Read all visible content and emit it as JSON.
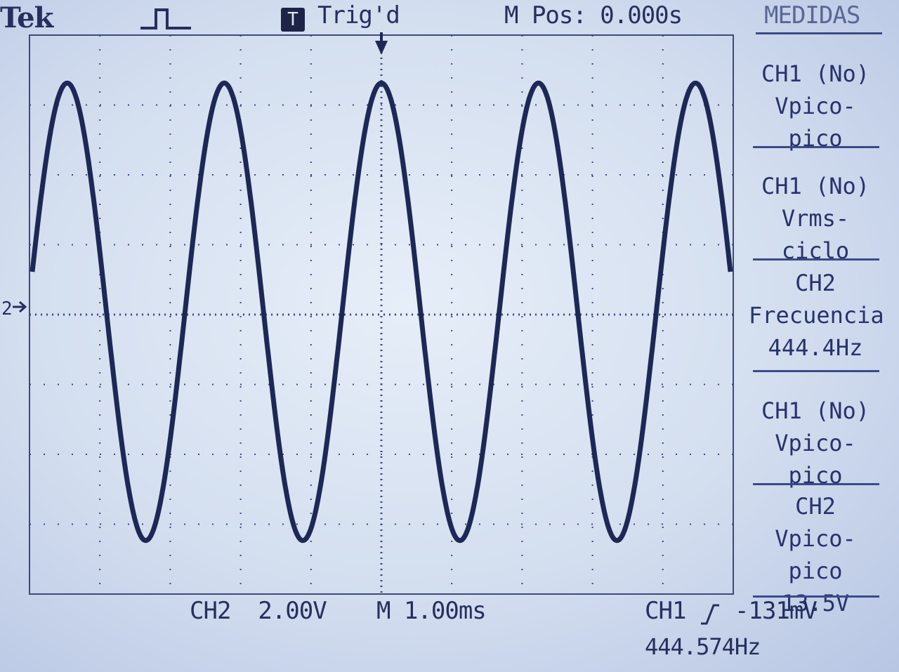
{
  "header": {
    "brand": "Tek",
    "trigger_status": "Trig'd",
    "trigger_icon_letter": "T",
    "position": "M Pos: 0.000s",
    "menu_title": "MEDIDAS"
  },
  "side_panel": {
    "items": [
      {
        "lines": [
          "CH1 (No)",
          "Vpico-pico"
        ]
      },
      {
        "lines": [
          "CH1 (No)",
          "Vrms-ciclo"
        ]
      },
      {
        "lines": [
          "CH2",
          "Frecuencia",
          "444.4Hz"
        ]
      },
      {
        "lines": [
          "CH1 (No)",
          "Vpico-pico"
        ]
      },
      {
        "lines": [
          "CH2",
          "Vpico-pico",
          "13.5V"
        ]
      }
    ]
  },
  "footer": {
    "ch2_scale": "CH2  2.00V",
    "time_scale": "M 1.00ms",
    "trigger_label": "CH1",
    "trigger_level": "-131mV",
    "trigger_frequency": "444.574Hz"
  },
  "markers": {
    "channel_marker": "2"
  },
  "chart_data": {
    "type": "line",
    "title": "",
    "xlabel": "",
    "ylabel": "",
    "series": [
      {
        "channel": "CH2",
        "waveform": "sine",
        "frequency_hz": 444.4,
        "peak_to_peak_v": 13.5
      }
    ],
    "time_per_division_ms": 1.0,
    "volts_per_division": 2.0,
    "horizontal_divisions": 10,
    "vertical_divisions": 8,
    "grid": true,
    "colors": {
      "trace": "#1e2856",
      "grid": "#3d4a7c",
      "background": "#dfe8f5"
    }
  }
}
